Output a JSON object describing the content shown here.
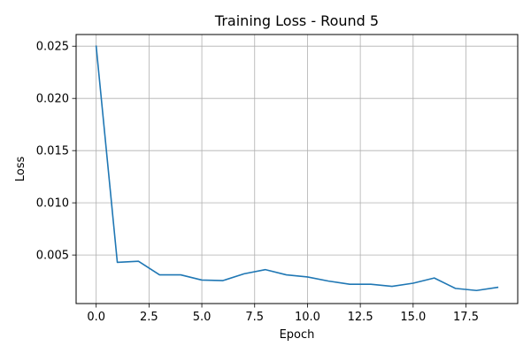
{
  "chart_data": {
    "type": "line",
    "title": "Training Loss - Round 5",
    "xlabel": "Epoch",
    "ylabel": "Loss",
    "xlim": [
      -0.95,
      19.95
    ],
    "ylim": [
      0.00035,
      0.02612
    ],
    "x_ticks": [
      0,
      2.5,
      5,
      7.5,
      10,
      12.5,
      15,
      17.5
    ],
    "x_tick_labels": [
      "0.0",
      "2.5",
      "5.0",
      "7.5",
      "10.0",
      "12.5",
      "15.0",
      "17.5"
    ],
    "y_ticks": [
      0.005,
      0.01,
      0.015,
      0.02,
      0.025
    ],
    "y_tick_labels": [
      "0.005",
      "0.010",
      "0.015",
      "0.020",
      "0.025"
    ],
    "grid": true,
    "legend": "none",
    "series": [
      {
        "color": "#1f77b4",
        "x": [
          0,
          1,
          2,
          3,
          4,
          5,
          6,
          7,
          8,
          9,
          10,
          11,
          12,
          13,
          14,
          15,
          16,
          17,
          18,
          19
        ],
        "y": [
          0.025,
          0.0043,
          0.0044,
          0.0031,
          0.0031,
          0.0026,
          0.00255,
          0.0032,
          0.0036,
          0.0031,
          0.0029,
          0.0025,
          0.0022,
          0.0022,
          0.002,
          0.0023,
          0.0028,
          0.0018,
          0.0016,
          0.0019
        ]
      }
    ]
  }
}
